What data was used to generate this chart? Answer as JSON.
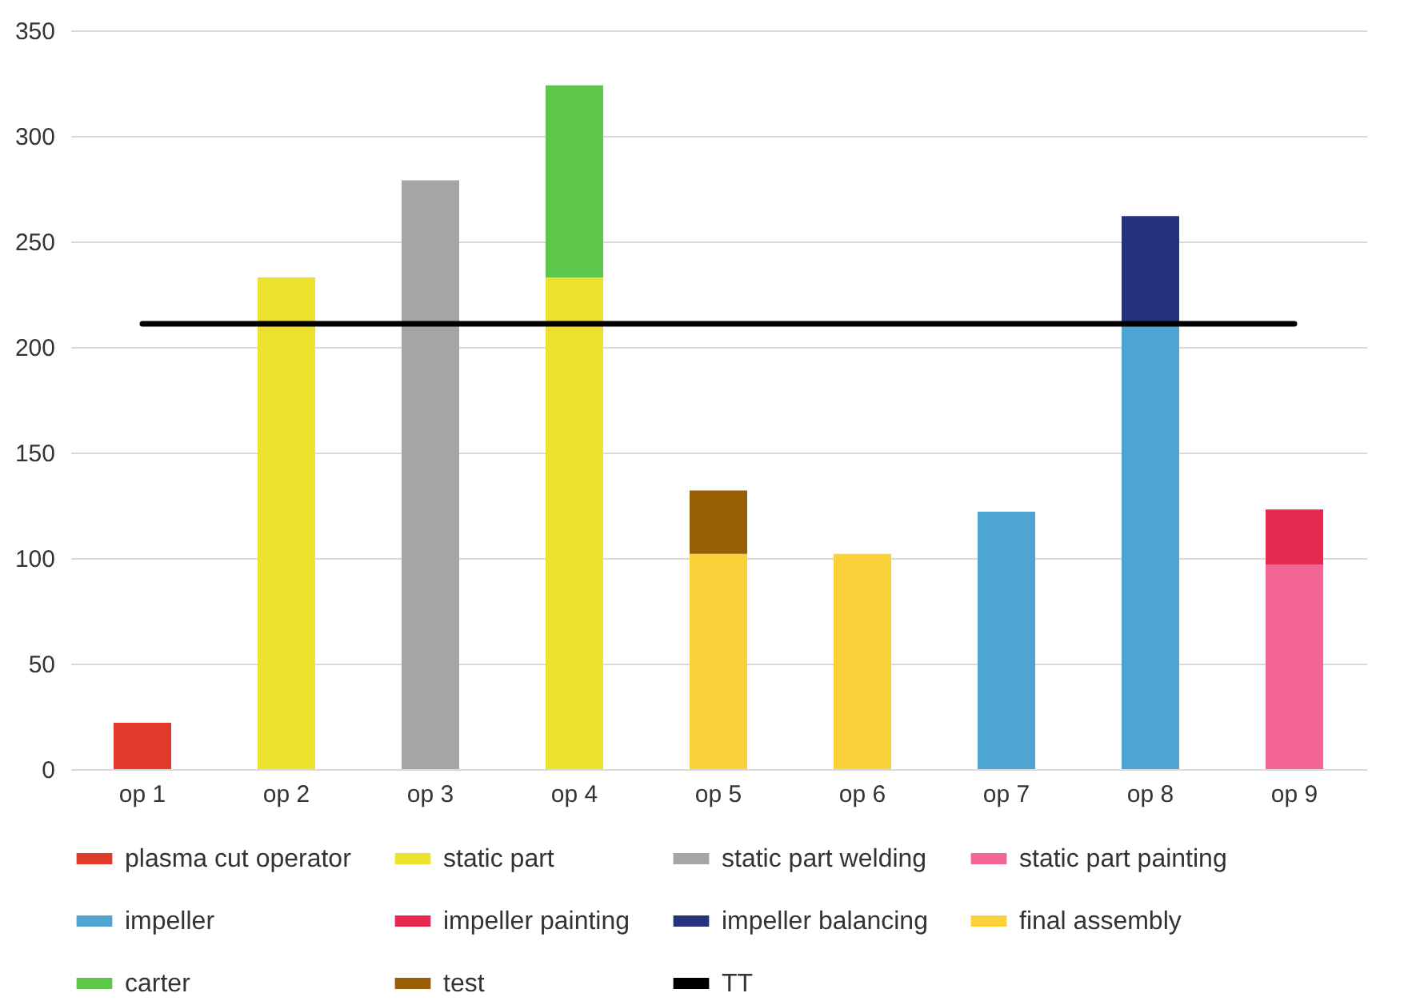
{
  "chart_data": {
    "type": "bar",
    "stacked": true,
    "categories": [
      "op 1",
      "op 2",
      "op 3",
      "op 4",
      "op 5",
      "op 6",
      "op 7",
      "op 8",
      "op 9"
    ],
    "series": [
      {
        "name": "plasma cut operator",
        "color": "#e03a2a",
        "values": [
          22,
          null,
          null,
          null,
          null,
          null,
          null,
          null,
          null
        ]
      },
      {
        "name": "static part",
        "color": "#ece22e",
        "values": [
          null,
          233,
          null,
          233,
          null,
          null,
          null,
          null,
          null
        ]
      },
      {
        "name": "static part welding",
        "color": "#a5a5a5",
        "values": [
          null,
          null,
          279,
          null,
          null,
          null,
          null,
          null,
          null
        ]
      },
      {
        "name": "static part painting",
        "color": "#f26594",
        "values": [
          null,
          null,
          null,
          null,
          null,
          null,
          null,
          null,
          97
        ]
      },
      {
        "name": "impeller",
        "color": "#4ea5d2",
        "values": [
          null,
          null,
          null,
          null,
          null,
          null,
          122,
          212,
          null
        ]
      },
      {
        "name": "impeller painting",
        "color": "#e62a50",
        "values": [
          null,
          null,
          null,
          null,
          null,
          null,
          null,
          null,
          26
        ]
      },
      {
        "name": "impeller balancing",
        "color": "#27327f",
        "values": [
          null,
          null,
          null,
          null,
          null,
          null,
          null,
          50,
          null
        ]
      },
      {
        "name": "final assembly",
        "color": "#fbd13a",
        "values": [
          null,
          null,
          null,
          null,
          102,
          102,
          null,
          null,
          null
        ]
      },
      {
        "name": "carter",
        "color": "#5dc64b",
        "values": [
          null,
          null,
          null,
          91,
          null,
          null,
          null,
          null,
          null
        ]
      },
      {
        "name": "test",
        "color": "#975f03",
        "values": [
          null,
          null,
          null,
          null,
          30,
          null,
          null,
          null,
          null
        ]
      },
      {
        "name": "TT",
        "type": "line",
        "color": "#000000",
        "values": [
          211,
          211,
          211,
          211,
          211,
          211,
          211,
          211,
          211
        ]
      }
    ],
    "ylim": [
      0,
      350
    ],
    "yticks": [
      0,
      50,
      100,
      150,
      200,
      250,
      300,
      350
    ],
    "grid": "y",
    "legend": "bottom"
  }
}
